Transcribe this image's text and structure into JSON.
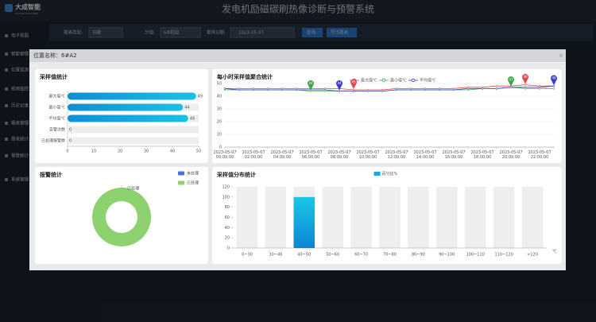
{
  "header": {
    "logo": "大成智能",
    "logo_sub": "DACHENG INTELLIGENT",
    "title": "发电机励磁碳刷热像诊断与预警系统"
  },
  "sidebar": [
    "电子视图",
    "智能管理",
    "位置监测",
    "视频监控",
    "历史记录",
    "报表管理",
    "报表统计",
    "报警统计",
    "系统管理"
  ],
  "filters": {
    "report_type_label": "报表类型:",
    "report_type": "日报",
    "group_label": "分组:",
    "group": "6#机组",
    "date_label": "查询日期:",
    "date": "2023-05-07",
    "query": "查询",
    "export": "导出报表"
  },
  "modal": {
    "title": "位置名称：6#A2"
  },
  "chart_data": [
    {
      "type": "bar",
      "orientation": "horizontal",
      "title": "采样值统计",
      "categories": [
        "最大值℃",
        "最小值℃",
        "平均值℃",
        "告警次数",
        "已处理报警数"
      ],
      "values": [
        49,
        44,
        46,
        0,
        0
      ],
      "color": "#1cb5e0",
      "xlim": [
        0,
        50
      ],
      "xticks": [
        0,
        10,
        20,
        30,
        40,
        50
      ]
    },
    {
      "type": "line",
      "title": "每小时采样值聚合统计",
      "categories": [
        "2023-05-07 00:00:00",
        null,
        "2023-05-07 02:00:00",
        null,
        "2023-05-07 04:00:00",
        null,
        "2023-05-07 06:00:00",
        null,
        "2023-05-07 08:00:00",
        null,
        "2023-05-07 10:00:00",
        null,
        "2023-05-07 12:00:00",
        null,
        "2023-05-07 14:00:00",
        null,
        "2023-05-07 16:00:00",
        null,
        "2023-05-07 18:00:00",
        null,
        "2023-05-07 20:00:00",
        null,
        "2023-05-07 22:00:00",
        null
      ],
      "series": [
        {
          "name": "最大值℃",
          "color": "#e0454a",
          "values": [
            46,
            46,
            46,
            46,
            46,
            46,
            46,
            46,
            46,
            45,
            45,
            45,
            46,
            46,
            46,
            46,
            46,
            47,
            47,
            48,
            48,
            49,
            48,
            48
          ]
        },
        {
          "name": "最小值℃",
          "color": "#3aa84a",
          "values": [
            45,
            45,
            45,
            45,
            45,
            45,
            44,
            44,
            44,
            44,
            44,
            44,
            45,
            45,
            45,
            45,
            45,
            45,
            46,
            46,
            47,
            46,
            46,
            46
          ]
        },
        {
          "name": "平均值℃",
          "color": "#3b3bc8",
          "values": [
            46,
            45,
            45,
            45,
            45,
            45,
            45,
            45,
            44,
            44,
            44,
            44,
            45,
            45,
            45,
            45,
            45,
            46,
            46,
            46,
            47,
            47,
            47,
            48
          ]
        }
      ],
      "ylim": [
        0,
        50
      ],
      "yticks": [
        0,
        10,
        20,
        30,
        40,
        50
      ],
      "grid": true,
      "legend": "top-right"
    },
    {
      "type": "pie",
      "title": "报警统计",
      "categories": [
        "未处理",
        "已处理"
      ],
      "values": [
        0,
        100
      ],
      "colors": [
        "#4f6fd6",
        "#8dd26e"
      ],
      "donut": true,
      "legend": "top-right"
    },
    {
      "type": "bar",
      "title": "采样值分布统计",
      "categories": [
        "0~30",
        "30~40",
        "40~50",
        "50~60",
        "60~70",
        "70~80",
        "80~90",
        "90~100",
        "100~110",
        "110~120",
        ">120"
      ],
      "series": [
        {
          "name": "百分比%",
          "color": "#17a9e6",
          "values": [
            0,
            0,
            100,
            0,
            0,
            0,
            0,
            0,
            0,
            0,
            0
          ]
        }
      ],
      "ylim": [
        0,
        120
      ],
      "yticks": [
        0,
        20,
        40,
        60,
        80,
        100,
        120
      ],
      "x_unit": "℃",
      "legend": "top-center"
    }
  ]
}
